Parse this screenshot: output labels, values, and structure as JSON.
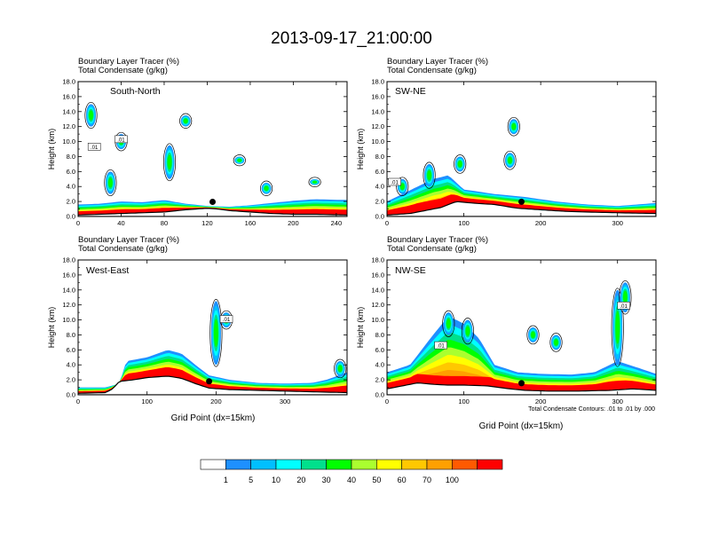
{
  "title": "2013-09-17_21:00:00",
  "var_line1": "Boundary Layer Tracer   (%)",
  "var_line2": "Total Condensate   (g/kg)",
  "ylabel": "Height (km)",
  "xlabel": "Grid Point (dx=15km)",
  "contour_note": "Total Condensate Contours: .01 to .01 by .000",
  "contour_value_label": ".01",
  "colorbar": {
    "levels": [
      "1",
      "5",
      "10",
      "20",
      "30",
      "40",
      "50",
      "60",
      "70",
      "100"
    ],
    "colors": [
      "#ffffff",
      "#1e90ff",
      "#00bfff",
      "#00ffff",
      "#00e08c",
      "#00ff00",
      "#aaff2f",
      "#ffff00",
      "#ffc800",
      "#ffa000",
      "#ff5a00",
      "#ff0000"
    ]
  },
  "chart_data": [
    {
      "type": "heatmap",
      "name": "South-North",
      "xlim": [
        0,
        250
      ],
      "ylim": [
        0,
        18
      ],
      "xticks": [
        0,
        40,
        80,
        120,
        160,
        200,
        240
      ],
      "yticks": [
        0,
        2,
        4,
        6,
        8,
        10,
        12,
        14,
        16,
        18
      ],
      "pbl_top": [
        [
          0,
          1.6
        ],
        [
          20,
          1.7
        ],
        [
          40,
          2.0
        ],
        [
          60,
          1.9
        ],
        [
          80,
          2.2
        ],
        [
          100,
          1.7
        ],
        [
          120,
          1.4
        ],
        [
          140,
          1.3
        ],
        [
          160,
          1.5
        ],
        [
          180,
          1.8
        ],
        [
          200,
          2.1
        ],
        [
          220,
          2.3
        ],
        [
          250,
          2.2
        ]
      ],
      "terrain": [
        [
          0,
          0.2
        ],
        [
          20,
          0.3
        ],
        [
          40,
          0.4
        ],
        [
          60,
          0.5
        ],
        [
          80,
          0.6
        ],
        [
          100,
          0.9
        ],
        [
          120,
          1.1
        ],
        [
          130,
          1.0
        ],
        [
          140,
          0.8
        ],
        [
          160,
          0.6
        ],
        [
          180,
          0.4
        ],
        [
          200,
          0.3
        ],
        [
          220,
          0.3
        ],
        [
          250,
          0.2
        ]
      ],
      "marker_x": 125,
      "contour_labels": [
        {
          "x": 15,
          "y": 9.2
        },
        {
          "x": 40,
          "y": 10.2
        }
      ]
    },
    {
      "type": "heatmap",
      "name": "SW-NE",
      "xlim": [
        0,
        350
      ],
      "ylim": [
        0,
        18
      ],
      "xticks": [
        0,
        100,
        200,
        300
      ],
      "yticks": [
        0,
        2,
        4,
        6,
        8,
        10,
        12,
        14,
        16,
        18
      ],
      "pbl_top": [
        [
          0,
          2.0
        ],
        [
          30,
          3.5
        ],
        [
          60,
          5.0
        ],
        [
          80,
          5.5
        ],
        [
          100,
          3.6
        ],
        [
          140,
          3.0
        ],
        [
          180,
          2.6
        ],
        [
          220,
          2.0
        ],
        [
          260,
          1.6
        ],
        [
          300,
          1.4
        ],
        [
          350,
          1.8
        ]
      ],
      "terrain": [
        [
          0,
          0.2
        ],
        [
          30,
          0.4
        ],
        [
          50,
          0.8
        ],
        [
          70,
          1.2
        ],
        [
          90,
          2.0
        ],
        [
          110,
          1.8
        ],
        [
          140,
          1.6
        ],
        [
          170,
          1.1
        ],
        [
          200,
          0.9
        ],
        [
          230,
          0.7
        ],
        [
          260,
          0.6
        ],
        [
          300,
          0.5
        ],
        [
          350,
          0.4
        ]
      ],
      "marker_x": 175,
      "contour_labels": [
        {
          "x": 10,
          "y": 4.5
        }
      ]
    },
    {
      "type": "heatmap",
      "name": "West-East",
      "xlim": [
        0,
        390
      ],
      "ylim": [
        0,
        18
      ],
      "xticks": [
        0,
        100,
        200,
        300
      ],
      "yticks": [
        0,
        2,
        4,
        6,
        8,
        10,
        12,
        14,
        16,
        18
      ],
      "pbl_top": [
        [
          0,
          1.0
        ],
        [
          40,
          1.0
        ],
        [
          60,
          1.5
        ],
        [
          70,
          4.5
        ],
        [
          100,
          5.0
        ],
        [
          130,
          6.0
        ],
        [
          150,
          5.5
        ],
        [
          170,
          4.0
        ],
        [
          190,
          2.6
        ],
        [
          220,
          2.0
        ],
        [
          260,
          1.6
        ],
        [
          300,
          1.5
        ],
        [
          340,
          1.6
        ],
        [
          360,
          2.0
        ],
        [
          390,
          3.0
        ]
      ],
      "terrain": [
        [
          0,
          0.2
        ],
        [
          40,
          0.3
        ],
        [
          50,
          0.8
        ],
        [
          60,
          1.8
        ],
        [
          80,
          2.0
        ],
        [
          100,
          2.3
        ],
        [
          130,
          2.5
        ],
        [
          150,
          2.2
        ],
        [
          170,
          1.5
        ],
        [
          190,
          0.9
        ],
        [
          220,
          0.7
        ],
        [
          260,
          0.6
        ],
        [
          300,
          0.5
        ],
        [
          340,
          0.4
        ],
        [
          390,
          0.3
        ]
      ],
      "marker_x": 190,
      "contour_labels": [
        {
          "x": 215,
          "y": 10.0
        }
      ]
    },
    {
      "type": "heatmap",
      "name": "NW-SE",
      "xlim": [
        0,
        350
      ],
      "ylim": [
        0,
        18
      ],
      "xticks": [
        0,
        100,
        200,
        300
      ],
      "yticks": [
        0,
        2,
        4,
        6,
        8,
        10,
        12,
        14,
        16,
        18
      ],
      "pbl_top": [
        [
          0,
          3.0
        ],
        [
          30,
          4.0
        ],
        [
          60,
          8.0
        ],
        [
          80,
          10.5
        ],
        [
          100,
          9.5
        ],
        [
          120,
          7.5
        ],
        [
          140,
          4.0
        ],
        [
          170,
          3.0
        ],
        [
          200,
          2.8
        ],
        [
          240,
          2.7
        ],
        [
          270,
          3.0
        ],
        [
          300,
          4.5
        ],
        [
          330,
          3.5
        ],
        [
          350,
          2.8
        ]
      ],
      "terrain": [
        [
          0,
          0.8
        ],
        [
          20,
          1.2
        ],
        [
          40,
          1.6
        ],
        [
          60,
          1.4
        ],
        [
          80,
          1.3
        ],
        [
          100,
          1.3
        ],
        [
          130,
          1.2
        ],
        [
          160,
          0.8
        ],
        [
          180,
          0.6
        ],
        [
          210,
          0.5
        ],
        [
          250,
          0.5
        ],
        [
          290,
          0.6
        ],
        [
          320,
          0.8
        ],
        [
          350,
          0.6
        ]
      ],
      "marker_x": 175,
      "contour_labels": [
        {
          "x": 70,
          "y": 6.5
        },
        {
          "x": 308,
          "y": 11.8
        }
      ]
    }
  ]
}
